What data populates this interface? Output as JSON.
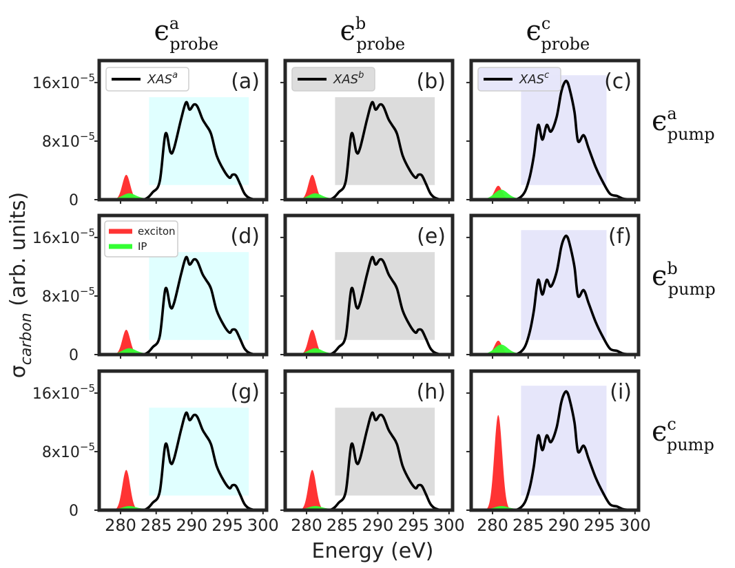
{
  "colors": {
    "frame": "#262626",
    "curve": "#000000",
    "exciton": "#ff3333",
    "ip": "#33ff33",
    "box_a": "#e0ffff",
    "box_b": "#dcdcdc",
    "box_c": "#e6e6fa"
  },
  "figure": {
    "xlabel": "Energy (eV)",
    "ylabel_sigma": "σ",
    "ylabel_sub": "carbon",
    "ylabel_rest": " (arb. units)",
    "col_headers": [
      {
        "sym": "ϵ",
        "sup": "a",
        "sub": "probe"
      },
      {
        "sym": "ϵ",
        "sup": "b",
        "sub": "probe"
      },
      {
        "sym": "ϵ",
        "sup": "c",
        "sub": "probe"
      }
    ],
    "row_headers": [
      {
        "sym": "ϵ",
        "sup": "a",
        "sub": "pump"
      },
      {
        "sym": "ϵ",
        "sup": "b",
        "sub": "pump"
      },
      {
        "sym": "ϵ",
        "sup": "c",
        "sub": "pump"
      }
    ],
    "x_ticks": [
      "280",
      "285",
      "290",
      "295",
      "300"
    ],
    "y_ticks": [
      {
        "base": "0",
        "exp": ""
      },
      {
        "base": "8x10",
        "exp": "−5"
      },
      {
        "base": "16x10",
        "exp": "−5"
      }
    ],
    "legend_xas": [
      {
        "base": "XAS",
        "sup": "a"
      },
      {
        "base": "XAS",
        "sup": "b"
      },
      {
        "base": "XAS",
        "sup": "c"
      }
    ],
    "legend_peaks": [
      "exciton",
      "IP"
    ]
  },
  "chart_data": [
    {
      "type": "area",
      "panel": "(a)",
      "xlim": [
        277,
        300.5
      ],
      "ylim": [
        0,
        0.00019
      ],
      "exciton_height": 3.4e-05,
      "ip_height": 7e-06,
      "box_x": [
        284,
        298
      ],
      "box_y": [
        2e-05,
        0.00014
      ],
      "curve_x": [
        277,
        280,
        282,
        283.5,
        284.5,
        285.5,
        286.3,
        287.0,
        287.5,
        288.5,
        289.2,
        289.7,
        290.3,
        290.8,
        291.5,
        292.0,
        292.7,
        293.5,
        294.5,
        295.3,
        295.7,
        296.2,
        296.8,
        297.5,
        298.5,
        300.5
      ],
      "curve_y": [
        0.0,
        0.0,
        0.0,
        1e-06,
        1e-05,
        2.5e-05,
        9e-05,
        6.5e-05,
        7e-05,
        0.00011,
        0.000133,
        0.000123,
        0.00013,
        0.000127,
        0.00011,
        0.000102,
        9e-05,
        6e-05,
        4e-05,
        3e-05,
        3.4e-05,
        3.3e-05,
        2.1e-05,
        7e-06,
        1e-06,
        0.0
      ],
      "curve_name": "XAS^a"
    },
    {
      "type": "area",
      "panel": "(b)",
      "xlim": [
        277,
        300.5
      ],
      "ylim": [
        0,
        0.00019
      ],
      "exciton_height": 3.4e-05,
      "ip_height": 7e-06,
      "box_x": [
        284,
        298
      ],
      "box_y": [
        2e-05,
        0.00014
      ],
      "curve_x": [
        277,
        280,
        282,
        283.5,
        284.5,
        285.5,
        286.3,
        287.0,
        287.5,
        288.5,
        289.2,
        289.7,
        290.3,
        290.8,
        291.5,
        292.0,
        292.7,
        293.5,
        294.5,
        295.3,
        295.7,
        296.2,
        296.8,
        297.5,
        298.5,
        300.5
      ],
      "curve_y": [
        0.0,
        0.0,
        0.0,
        1e-06,
        1e-05,
        2.5e-05,
        9e-05,
        6.5e-05,
        7e-05,
        0.00011,
        0.000133,
        0.000123,
        0.00013,
        0.000127,
        0.00011,
        0.000102,
        9e-05,
        6e-05,
        4e-05,
        3e-05,
        3.4e-05,
        3.3e-05,
        2.1e-05,
        7e-06,
        1e-06,
        0.0
      ],
      "curve_name": "XAS^b"
    },
    {
      "type": "area",
      "panel": "(c)",
      "xlim": [
        277,
        300.5
      ],
      "ylim": [
        0,
        0.00019
      ],
      "exciton_height": 1.9e-05,
      "ip_height": 1.2e-05,
      "box_x": [
        284,
        296
      ],
      "box_y": [
        2e-05,
        0.00017
      ],
      "curve_x": [
        277,
        280,
        282,
        283.5,
        284.5,
        285.2,
        285.8,
        286.4,
        287.0,
        287.6,
        288.2,
        289.0,
        289.6,
        290.0,
        290.4,
        290.8,
        291.5,
        292.0,
        292.8,
        293.5,
        294.5,
        295.5,
        296.5,
        297.5,
        298.5,
        300.5
      ],
      "curve_y": [
        0.0,
        0.0,
        0.0,
        1e-06,
        1e-05,
        3e-05,
        6e-05,
        0.000102,
        8.2e-05,
        0.000102,
        9.3e-05,
        0.000113,
        0.000145,
        0.000158,
        0.000162,
        0.000152,
        0.00012,
        8e-05,
        8.8e-05,
        7e-05,
        4.4e-05,
        2.4e-05,
        8e-06,
        5e-06,
        1e-06,
        0.0
      ],
      "curve_name": "XAS^c"
    },
    {
      "type": "area",
      "panel": "(d)",
      "xlim": [
        277,
        300.5
      ],
      "ylim": [
        0,
        0.00019
      ],
      "exciton_height": 3.4e-05,
      "ip_height": 7e-06,
      "box_x": [
        284,
        298
      ],
      "box_y": [
        2e-05,
        0.00014
      ],
      "curve_x": [
        277,
        280,
        282,
        283.5,
        284.5,
        285.5,
        286.3,
        287.0,
        287.5,
        288.5,
        289.2,
        289.7,
        290.3,
        290.8,
        291.5,
        292.0,
        292.7,
        293.5,
        294.5,
        295.3,
        295.7,
        296.2,
        296.8,
        297.5,
        298.5,
        300.5
      ],
      "curve_y": [
        0.0,
        0.0,
        0.0,
        1e-06,
        1e-05,
        2.5e-05,
        9e-05,
        6.5e-05,
        7e-05,
        0.00011,
        0.000133,
        0.000123,
        0.00013,
        0.000127,
        0.00011,
        0.000102,
        9e-05,
        6e-05,
        4e-05,
        3e-05,
        3.4e-05,
        3.3e-05,
        2.1e-05,
        7e-06,
        1e-06,
        0.0
      ]
    },
    {
      "type": "area",
      "panel": "(e)",
      "xlim": [
        277,
        300.5
      ],
      "ylim": [
        0,
        0.00019
      ],
      "exciton_height": 3.4e-05,
      "ip_height": 7e-06,
      "box_x": [
        284,
        298
      ],
      "box_y": [
        2e-05,
        0.00014
      ],
      "curve_x": [
        277,
        280,
        282,
        283.5,
        284.5,
        285.5,
        286.3,
        287.0,
        287.5,
        288.5,
        289.2,
        289.7,
        290.3,
        290.8,
        291.5,
        292.0,
        292.7,
        293.5,
        294.5,
        295.3,
        295.7,
        296.2,
        296.8,
        297.5,
        298.5,
        300.5
      ],
      "curve_y": [
        0.0,
        0.0,
        0.0,
        1e-06,
        1e-05,
        2.5e-05,
        9e-05,
        6.5e-05,
        7e-05,
        0.00011,
        0.000133,
        0.000123,
        0.00013,
        0.000127,
        0.00011,
        0.000102,
        9e-05,
        6e-05,
        4e-05,
        3e-05,
        3.4e-05,
        3.3e-05,
        2.1e-05,
        7e-06,
        1e-06,
        0.0
      ]
    },
    {
      "type": "area",
      "panel": "(f)",
      "xlim": [
        277,
        300.5
      ],
      "ylim": [
        0,
        0.00019
      ],
      "exciton_height": 1.9e-05,
      "ip_height": 1.2e-05,
      "box_x": [
        284,
        296
      ],
      "box_y": [
        2e-05,
        0.00017
      ],
      "curve_x": [
        277,
        280,
        282,
        283.5,
        284.5,
        285.2,
        285.8,
        286.4,
        287.0,
        287.6,
        288.2,
        289.0,
        289.6,
        290.0,
        290.4,
        290.8,
        291.5,
        292.0,
        292.8,
        293.5,
        294.5,
        295.5,
        296.5,
        297.5,
        298.5,
        300.5
      ],
      "curve_y": [
        0.0,
        0.0,
        0.0,
        1e-06,
        1e-05,
        3e-05,
        6e-05,
        0.000102,
        8.2e-05,
        0.000102,
        9.3e-05,
        0.000113,
        0.000145,
        0.000158,
        0.000162,
        0.000152,
        0.00012,
        8e-05,
        8.8e-05,
        7e-05,
        4.4e-05,
        2.4e-05,
        8e-06,
        5e-06,
        1e-06,
        0.0
      ]
    },
    {
      "type": "area",
      "panel": "(g)",
      "xlim": [
        277,
        300.5
      ],
      "ylim": [
        0,
        0.00019
      ],
      "exciton_height": 5.5e-05,
      "ip_height": 4e-06,
      "box_x": [
        284,
        298
      ],
      "box_y": [
        2e-05,
        0.00014
      ],
      "curve_x": [
        277,
        280,
        282,
        283.5,
        284.5,
        285.5,
        286.3,
        287.0,
        287.5,
        288.5,
        289.2,
        289.7,
        290.3,
        290.8,
        291.5,
        292.0,
        292.7,
        293.5,
        294.5,
        295.3,
        295.7,
        296.2,
        296.8,
        297.5,
        298.5,
        300.5
      ],
      "curve_y": [
        0.0,
        0.0,
        0.0,
        1e-06,
        1e-05,
        2.5e-05,
        9e-05,
        6.5e-05,
        7e-05,
        0.00011,
        0.000133,
        0.000123,
        0.00013,
        0.000127,
        0.00011,
        0.000102,
        9e-05,
        6e-05,
        4e-05,
        3e-05,
        3.4e-05,
        3.3e-05,
        2.1e-05,
        7e-06,
        1e-06,
        0.0
      ]
    },
    {
      "type": "area",
      "panel": "(h)",
      "xlim": [
        277,
        300.5
      ],
      "ylim": [
        0,
        0.00019
      ],
      "exciton_height": 5.5e-05,
      "ip_height": 4e-06,
      "box_x": [
        284,
        298
      ],
      "box_y": [
        2e-05,
        0.00014
      ],
      "curve_x": [
        277,
        280,
        282,
        283.5,
        284.5,
        285.5,
        286.3,
        287.0,
        287.5,
        288.5,
        289.2,
        289.7,
        290.3,
        290.8,
        291.5,
        292.0,
        292.7,
        293.5,
        294.5,
        295.3,
        295.7,
        296.2,
        296.8,
        297.5,
        298.5,
        300.5
      ],
      "curve_y": [
        0.0,
        0.0,
        0.0,
        1e-06,
        1e-05,
        2.5e-05,
        9e-05,
        6.5e-05,
        7e-05,
        0.00011,
        0.000133,
        0.000123,
        0.00013,
        0.000127,
        0.00011,
        0.000102,
        9e-05,
        6e-05,
        4e-05,
        3e-05,
        3.4e-05,
        3.3e-05,
        2.1e-05,
        7e-06,
        1e-06,
        0.0
      ]
    },
    {
      "type": "area",
      "panel": "(i)",
      "xlim": [
        277,
        300.5
      ],
      "ylim": [
        0,
        0.00019
      ],
      "exciton_height": 0.00013,
      "ip_height": 4e-06,
      "box_x": [
        284,
        296
      ],
      "box_y": [
        2e-05,
        0.00017
      ],
      "curve_x": [
        277,
        280,
        282,
        283.5,
        284.5,
        285.2,
        285.8,
        286.4,
        287.0,
        287.6,
        288.2,
        289.0,
        289.6,
        290.0,
        290.4,
        290.8,
        291.5,
        292.0,
        292.8,
        293.5,
        294.5,
        295.5,
        296.5,
        297.5,
        298.5,
        300.5
      ],
      "curve_y": [
        0.0,
        0.0,
        0.0,
        1e-06,
        1e-05,
        3e-05,
        6e-05,
        0.000102,
        8.2e-05,
        0.000102,
        9.3e-05,
        0.000113,
        0.000145,
        0.000158,
        0.000162,
        0.000152,
        0.00012,
        8e-05,
        8.8e-05,
        7e-05,
        4.4e-05,
        2.4e-05,
        8e-06,
        5e-06,
        1e-06,
        0.0
      ]
    }
  ]
}
